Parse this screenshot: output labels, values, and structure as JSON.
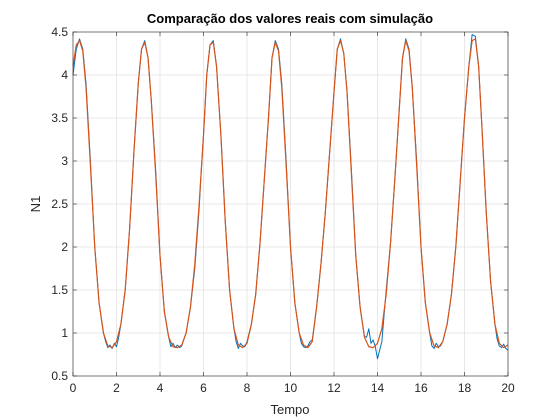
{
  "chart_data": {
    "type": "line",
    "title": "Comparação dos valores reais com simulação",
    "xlabel": "Tempo",
    "ylabel": "N1",
    "xlim": [
      0,
      20
    ],
    "ylim": [
      0.5,
      4.5
    ],
    "xticks": [
      0,
      2,
      4,
      6,
      8,
      10,
      12,
      14,
      16,
      18,
      20
    ],
    "xtick_labels": [
      "0",
      "2",
      "4",
      "6",
      "8",
      "10",
      "12",
      "14",
      "16",
      "18",
      "20"
    ],
    "yticks": [
      0.5,
      1,
      1.5,
      2,
      2.5,
      3,
      3.5,
      4,
      4.5
    ],
    "ytick_labels": [
      "0.5",
      "1",
      "1.5",
      "2",
      "2.5",
      "3",
      "3.5",
      "4",
      "4.5"
    ],
    "grid": true,
    "legend": "none",
    "series": [
      {
        "color": "#0072BD",
        "style": "real",
        "x": [
          0,
          0.15,
          0.3,
          0.45,
          0.6,
          0.8,
          1.0,
          1.2,
          1.4,
          1.5,
          1.6,
          1.7,
          1.8,
          1.9,
          2.0,
          2.1,
          2.2,
          2.4,
          2.6,
          2.8,
          3.0,
          3.15,
          3.3,
          3.45,
          3.6,
          3.8,
          4.0,
          4.2,
          4.4,
          4.5,
          4.6,
          4.7,
          4.8,
          4.9,
          5.0,
          5.2,
          5.4,
          5.6,
          5.8,
          5.9,
          6.0,
          6.15,
          6.3,
          6.45,
          6.6,
          6.8,
          7.0,
          7.2,
          7.4,
          7.5,
          7.6,
          7.7,
          7.8,
          7.9,
          8.0,
          8.2,
          8.4,
          8.6,
          8.8,
          9.0,
          9.15,
          9.3,
          9.45,
          9.6,
          9.8,
          10.0,
          10.2,
          10.4,
          10.5,
          10.6,
          10.7,
          10.8,
          10.9,
          11.0,
          11.2,
          11.4,
          11.6,
          11.8,
          12.0,
          12.15,
          12.3,
          12.45,
          12.6,
          12.8,
          13.0,
          13.2,
          13.4,
          13.5,
          13.6,
          13.7,
          13.8,
          13.9,
          14.0,
          14.2,
          14.4,
          14.6,
          14.8,
          15.0,
          15.15,
          15.3,
          15.45,
          15.6,
          15.8,
          16.0,
          16.2,
          16.4,
          16.5,
          16.6,
          16.7,
          16.8,
          16.9,
          17.0,
          17.2,
          17.4,
          17.6,
          17.8,
          18.0,
          18.2,
          18.35,
          18.5,
          18.65,
          18.8,
          19.0,
          19.2,
          19.4,
          19.5,
          19.6,
          19.7,
          19.8,
          19.9,
          20.0
        ],
        "y": [
          4.0,
          4.3,
          4.42,
          4.3,
          3.9,
          3.0,
          2.0,
          1.35,
          1.0,
          0.9,
          0.83,
          0.86,
          0.82,
          0.88,
          0.84,
          0.95,
          1.1,
          1.5,
          2.2,
          3.1,
          3.9,
          4.3,
          4.4,
          4.2,
          3.7,
          2.9,
          1.9,
          1.25,
          0.95,
          0.84,
          0.88,
          0.83,
          0.86,
          0.83,
          0.85,
          1.0,
          1.3,
          1.75,
          2.45,
          2.9,
          3.3,
          4.0,
          4.35,
          4.4,
          4.1,
          3.3,
          2.3,
          1.5,
          1.05,
          0.9,
          0.82,
          0.88,
          0.85,
          0.84,
          0.9,
          1.1,
          1.45,
          2.05,
          2.8,
          3.55,
          4.2,
          4.4,
          4.3,
          3.9,
          3.0,
          2.0,
          1.35,
          1.0,
          0.88,
          0.84,
          0.83,
          0.85,
          0.9,
          0.92,
          1.3,
          1.8,
          2.4,
          3.1,
          3.8,
          4.3,
          4.42,
          4.25,
          3.8,
          2.9,
          1.9,
          1.3,
          0.96,
          0.95,
          1.05,
          0.88,
          0.92,
          0.84,
          0.7,
          0.9,
          1.5,
          2.05,
          2.8,
          3.6,
          4.2,
          4.42,
          4.3,
          3.85,
          3.0,
          2.0,
          1.35,
          1.0,
          0.85,
          0.82,
          0.88,
          0.84,
          0.85,
          0.9,
          1.1,
          1.45,
          2.0,
          2.75,
          3.5,
          4.1,
          4.47,
          4.45,
          4.1,
          3.4,
          2.4,
          1.6,
          1.1,
          0.93,
          0.85,
          0.83,
          0.87,
          0.82,
          0.8
        ]
      },
      {
        "color": "#D95319",
        "style": "simulation",
        "x": [
          0,
          0.15,
          0.3,
          0.45,
          0.6,
          0.8,
          1.0,
          1.2,
          1.4,
          1.6,
          1.8,
          2.0,
          2.2,
          2.4,
          2.6,
          2.8,
          3.0,
          3.15,
          3.3,
          3.45,
          3.6,
          3.8,
          4.0,
          4.2,
          4.4,
          4.6,
          4.8,
          5.0,
          5.2,
          5.4,
          5.6,
          5.8,
          6.0,
          6.15,
          6.3,
          6.45,
          6.6,
          6.8,
          7.0,
          7.2,
          7.4,
          7.6,
          7.8,
          8.0,
          8.2,
          8.4,
          8.6,
          8.8,
          9.0,
          9.15,
          9.3,
          9.45,
          9.6,
          9.8,
          10.0,
          10.2,
          10.4,
          10.6,
          10.8,
          11.0,
          11.2,
          11.4,
          11.6,
          11.8,
          12.0,
          12.15,
          12.3,
          12.45,
          12.6,
          12.8,
          13.0,
          13.2,
          13.4,
          13.6,
          13.8,
          14.0,
          14.2,
          14.4,
          14.6,
          14.8,
          15.0,
          15.15,
          15.3,
          15.45,
          15.6,
          15.8,
          16.0,
          16.2,
          16.4,
          16.6,
          16.8,
          17.0,
          17.2,
          17.4,
          17.6,
          17.8,
          18.0,
          18.2,
          18.35,
          18.5,
          18.65,
          18.8,
          19.0,
          19.2,
          19.4,
          19.6,
          19.8,
          20.0
        ],
        "y": [
          4.1,
          4.35,
          4.4,
          4.28,
          3.85,
          2.95,
          2.0,
          1.35,
          1.0,
          0.85,
          0.83,
          0.9,
          1.1,
          1.5,
          2.2,
          3.1,
          3.9,
          4.3,
          4.38,
          4.2,
          3.7,
          2.85,
          1.9,
          1.25,
          0.95,
          0.84,
          0.83,
          0.86,
          1.0,
          1.3,
          1.8,
          2.5,
          3.3,
          4.0,
          4.35,
          4.38,
          4.1,
          3.3,
          2.3,
          1.5,
          1.05,
          0.86,
          0.83,
          0.88,
          1.1,
          1.45,
          2.05,
          2.8,
          3.55,
          4.2,
          4.38,
          4.28,
          3.85,
          2.95,
          2.0,
          1.35,
          1.0,
          0.86,
          0.83,
          0.9,
          1.3,
          1.8,
          2.4,
          3.1,
          3.8,
          4.3,
          4.4,
          4.25,
          3.8,
          2.85,
          1.9,
          1.3,
          0.95,
          0.84,
          0.83,
          0.88,
          1.05,
          1.45,
          2.05,
          2.8,
          3.6,
          4.2,
          4.4,
          4.28,
          3.85,
          2.95,
          2.0,
          1.35,
          1.0,
          0.85,
          0.83,
          0.9,
          1.1,
          1.45,
          2.0,
          2.75,
          3.5,
          4.1,
          4.4,
          4.42,
          4.1,
          3.4,
          2.4,
          1.6,
          1.1,
          0.88,
          0.83,
          0.86
        ]
      }
    ]
  }
}
